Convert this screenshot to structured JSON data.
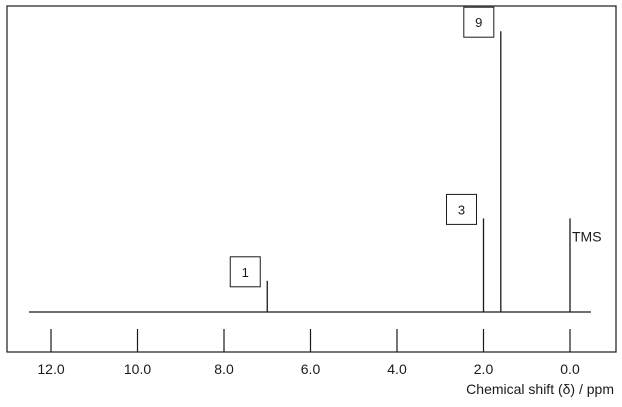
{
  "chart_data": {
    "type": "nmr-spectrum",
    "xlabel": "Chemical shift (δ) / ppm",
    "xlim": [
      12.5,
      -0.5
    ],
    "x_ticks": [
      "12.0",
      "10.0",
      "8.0",
      "6.0",
      "4.0",
      "2.0",
      "0.0"
    ],
    "peaks": [
      {
        "shift": 7.0,
        "relative_height": 1,
        "label": "1"
      },
      {
        "shift": 2.0,
        "relative_height": 3,
        "label": "3"
      },
      {
        "shift": 1.6,
        "relative_height": 9,
        "label": "9"
      },
      {
        "shift": 0.0,
        "relative_height": 3,
        "label": "TMS"
      }
    ]
  }
}
